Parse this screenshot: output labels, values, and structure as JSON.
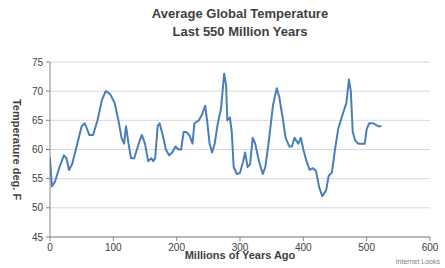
{
  "chart_data": {
    "type": "line",
    "title": "Average Global Temperature",
    "subtitle": "Last 550 Million Years",
    "x_label": "Millions of Years Ago",
    "y_label": "Temperature deg. F",
    "annotation": "Internet Looks",
    "color": "#4a7ebb",
    "grid": true,
    "xlim": [
      0,
      600
    ],
    "xticks": [
      0,
      100,
      200,
      300,
      400,
      500,
      600
    ],
    "ylim": [
      45,
      75
    ],
    "yticks": [
      45,
      50,
      55,
      60,
      65,
      70,
      75
    ],
    "x": [
      0,
      3,
      8,
      15,
      22,
      26,
      30,
      35,
      42,
      50,
      55,
      62,
      68,
      75,
      82,
      88,
      95,
      102,
      108,
      113,
      117,
      120,
      124,
      128,
      133,
      140,
      145,
      150,
      155,
      160,
      163,
      166,
      170,
      173,
      178,
      183,
      188,
      193,
      198,
      203,
      207,
      211,
      215,
      220,
      225,
      228,
      235,
      240,
      245,
      248,
      252,
      256,
      260,
      265,
      270,
      275,
      278,
      280,
      284,
      287,
      290,
      295,
      300,
      305,
      308,
      312,
      316,
      320,
      324,
      330,
      336,
      340,
      345,
      352,
      358,
      362,
      368,
      372,
      378,
      382,
      386,
      392,
      396,
      400,
      405,
      410,
      415,
      420,
      425,
      430,
      436,
      440,
      445,
      450,
      455,
      462,
      468,
      472,
      475,
      478,
      482,
      487,
      492,
      497,
      500,
      504,
      510,
      518,
      522
    ],
    "values": [
      58.5,
      53.7,
      54.5,
      57,
      59,
      58.5,
      56.5,
      57.5,
      60.5,
      64,
      64.5,
      62.5,
      62.5,
      65,
      68.5,
      70,
      69.5,
      68,
      65,
      62,
      61,
      64,
      61,
      58.5,
      58.5,
      61,
      62.5,
      61,
      58,
      58.5,
      58,
      58.5,
      64,
      64.5,
      62.5,
      60,
      59,
      59.5,
      60.5,
      60,
      60,
      63,
      63,
      62.5,
      61,
      64.5,
      65,
      66,
      67.5,
      65,
      61,
      59.5,
      61,
      64.5,
      67,
      73,
      71,
      65,
      65.5,
      63,
      57,
      55.8,
      56,
      58,
      59.5,
      57,
      57.5,
      62,
      61,
      58,
      55.8,
      57,
      61,
      67.5,
      70.5,
      69,
      65,
      62,
      60.5,
      60.5,
      62,
      61,
      62,
      60,
      58,
      56.5,
      56.8,
      56.3,
      53.5,
      52,
      53,
      55.5,
      56,
      60,
      63.5,
      66,
      68,
      72,
      70,
      63,
      61.5,
      61,
      61,
      61,
      63.5,
      64.5,
      64.5,
      64,
      64
    ]
  }
}
